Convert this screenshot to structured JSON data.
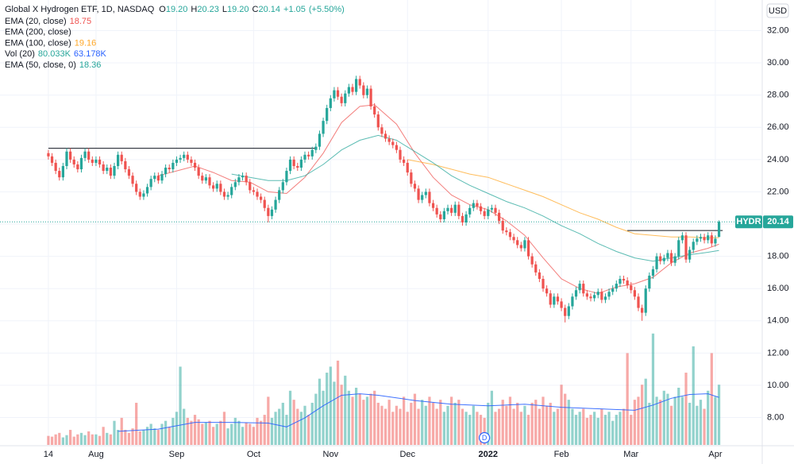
{
  "chart_data": {
    "type": "candlestick",
    "title": "Global X Hydrogen ETF, 1D, NASDAQ",
    "ohlc_keys": [
      "O",
      "H",
      "L",
      "C"
    ],
    "ohlc_labels": [
      "19.20",
      "20.23",
      "19.20",
      "20.14"
    ],
    "change_labels": [
      "+1.05",
      "(+5.50%)"
    ],
    "currency": "USD",
    "symbol": "HYDR",
    "up_color": "#26a69a",
    "down_color": "#ef5350",
    "xlim": [
      -13.2,
      194.8
    ],
    "ylim": [
      6.3,
      33.9
    ],
    "volume_ylim": [
      0,
      190
    ],
    "grid": true,
    "yticks": [
      {
        "value": 8,
        "label": "8.00"
      },
      {
        "value": 10,
        "label": "10.00"
      },
      {
        "value": 12,
        "label": "12.00"
      },
      {
        "value": 14,
        "label": "14.00"
      },
      {
        "value": 16,
        "label": "16.00"
      },
      {
        "value": 18,
        "label": "18.00"
      },
      {
        "value": 20,
        "label": "20.00"
      },
      {
        "value": 22,
        "label": "22.00"
      },
      {
        "value": 24,
        "label": "24.00"
      },
      {
        "value": 26,
        "label": "26.00"
      },
      {
        "value": 28,
        "label": "28.00"
      },
      {
        "value": 30,
        "label": "30.00"
      },
      {
        "value": 32,
        "label": "32.00"
      }
    ],
    "xticks": [
      {
        "value": 0,
        "label": "14"
      },
      {
        "value": 13,
        "label": "Aug"
      },
      {
        "value": 35,
        "label": "Sep"
      },
      {
        "value": 56,
        "label": "Oct"
      },
      {
        "value": 77,
        "label": "Nov"
      },
      {
        "value": 98,
        "label": "Dec"
      },
      {
        "value": 120,
        "label": "2022"
      },
      {
        "value": 140,
        "label": "Feb"
      },
      {
        "value": 159,
        "label": "Mar"
      },
      {
        "value": 182,
        "label": "Apr"
      }
    ],
    "open": [
      24.4,
      24.2,
      23.8,
      23.3,
      22.9,
      23.6,
      24.5,
      24.0,
      23.7,
      23.4,
      24.1,
      24.5,
      24.0,
      23.8,
      24.0,
      23.7,
      23.3,
      23.5,
      23.0,
      23.6,
      24.3,
      23.9,
      23.4,
      23.0,
      22.5,
      22.0,
      21.7,
      21.9,
      22.3,
      22.8,
      23.0,
      22.7,
      23.1,
      23.5,
      23.4,
      23.8,
      24.0,
      24.1,
      24.3,
      24.0,
      23.8,
      23.5,
      23.0,
      22.7,
      22.9,
      22.4,
      22.2,
      22.5,
      22.0,
      21.7,
      21.8,
      22.3,
      22.6,
      22.9,
      23.0,
      22.6,
      22.1,
      22.0,
      21.7,
      21.5,
      21.0,
      20.5,
      20.9,
      21.5,
      22.1,
      22.6,
      23.3,
      24.0,
      23.6,
      23.5,
      24.0,
      24.3,
      24.2,
      24.6,
      24.8,
      25.6,
      26.4,
      27.2,
      27.8,
      28.3,
      27.9,
      27.5,
      28.1,
      28.5,
      28.2,
      29.0,
      28.6,
      28.0,
      28.4,
      27.3,
      26.8,
      26.0,
      25.6,
      25.3,
      25.1,
      24.9,
      24.6,
      24.0,
      23.8,
      23.2,
      22.5,
      22.2,
      21.5,
      21.8,
      22.0,
      21.3,
      21.0,
      20.6,
      20.3,
      20.8,
      21.0,
      20.7,
      21.2,
      20.5,
      20.1,
      20.6,
      21.0,
      21.3,
      21.1,
      20.8,
      20.5,
      20.9,
      21.0,
      20.7,
      20.2,
      19.6,
      19.5,
      19.2,
      19.0,
      18.7,
      18.5,
      19.0,
      18.0,
      17.5,
      17.0,
      16.6,
      16.0,
      15.7,
      15.0,
      15.5,
      15.2,
      14.8,
      14.3,
      14.9,
      15.5,
      15.9,
      16.3,
      15.7,
      15.5,
      15.4,
      15.6,
      15.8,
      15.3,
      15.5,
      15.8,
      16.0,
      16.3,
      16.6,
      16.5,
      16.2,
      15.9,
      15.5,
      14.8,
      14.5,
      16.0,
      16.8,
      17.2,
      18.0,
      17.7,
      17.9,
      18.2,
      17.6,
      18.0,
      19.0,
      19.3,
      17.8,
      18.4,
      18.9,
      19.1,
      19.2,
      19.0,
      19.3,
      18.8,
      19.2
    ],
    "high": [
      24.6,
      24.4,
      24.0,
      23.5,
      23.8,
      24.7,
      24.7,
      24.2,
      23.9,
      24.3,
      24.7,
      24.7,
      24.2,
      24.2,
      24.2,
      23.9,
      23.7,
      23.7,
      23.8,
      24.5,
      24.5,
      24.1,
      23.6,
      23.2,
      22.7,
      22.2,
      22.1,
      22.5,
      23.0,
      23.2,
      23.2,
      23.3,
      23.7,
      23.7,
      24.0,
      24.2,
      24.3,
      24.5,
      24.5,
      24.2,
      24.0,
      23.7,
      23.2,
      23.1,
      23.1,
      22.6,
      22.7,
      22.7,
      22.2,
      22.0,
      22.5,
      22.8,
      23.1,
      23.2,
      23.2,
      22.8,
      22.3,
      22.2,
      21.9,
      21.7,
      21.2,
      21.1,
      21.7,
      22.3,
      22.8,
      23.5,
      24.2,
      24.2,
      23.8,
      24.2,
      24.5,
      24.5,
      24.8,
      25.0,
      25.8,
      26.6,
      27.4,
      28.0,
      28.5,
      28.5,
      28.1,
      28.3,
      28.7,
      28.7,
      29.2,
      29.2,
      28.8,
      28.6,
      28.6,
      27.5,
      27.0,
      26.2,
      25.8,
      25.5,
      25.3,
      25.1,
      24.8,
      24.2,
      24.0,
      23.4,
      22.7,
      22.4,
      22.0,
      22.2,
      22.2,
      21.5,
      21.2,
      20.8,
      21.0,
      21.2,
      21.2,
      21.4,
      21.4,
      20.7,
      20.8,
      21.2,
      21.5,
      21.5,
      21.3,
      21.0,
      21.1,
      21.2,
      21.2,
      20.9,
      20.4,
      19.8,
      19.7,
      19.4,
      19.2,
      18.9,
      19.2,
      19.2,
      18.2,
      17.7,
      17.2,
      16.8,
      16.2,
      15.9,
      15.7,
      15.7,
      15.4,
      15.0,
      15.1,
      15.7,
      16.1,
      16.5,
      16.5,
      15.9,
      15.7,
      15.8,
      16.0,
      16.0,
      15.7,
      16.0,
      16.2,
      16.5,
      16.8,
      16.8,
      16.7,
      16.4,
      16.1,
      15.7,
      15.0,
      16.2,
      17.0,
      17.4,
      18.2,
      18.2,
      18.1,
      18.4,
      18.4,
      18.2,
      19.2,
      19.5,
      19.5,
      18.6,
      19.1,
      19.3,
      19.4,
      19.4,
      19.5,
      19.5,
      19.3,
      20.23
    ],
    "low": [
      24.0,
      23.6,
      23.1,
      22.7,
      22.7,
      23.4,
      23.8,
      23.5,
      23.2,
      23.2,
      23.9,
      23.8,
      23.6,
      23.6,
      23.5,
      23.1,
      23.1,
      22.8,
      22.8,
      23.4,
      23.7,
      23.2,
      22.8,
      22.3,
      21.8,
      21.5,
      21.5,
      21.7,
      22.1,
      22.6,
      22.5,
      22.5,
      22.9,
      23.2,
      23.2,
      23.6,
      23.8,
      23.9,
      23.8,
      23.6,
      23.3,
      22.8,
      22.5,
      22.5,
      22.2,
      22.0,
      22.0,
      21.8,
      21.5,
      21.5,
      21.6,
      22.1,
      22.4,
      22.7,
      22.4,
      21.9,
      21.8,
      21.5,
      21.3,
      20.8,
      20.1,
      20.3,
      20.7,
      21.3,
      21.9,
      22.4,
      23.1,
      23.4,
      23.3,
      23.3,
      23.8,
      24.0,
      24.0,
      24.4,
      24.6,
      25.4,
      26.2,
      27.0,
      27.6,
      27.7,
      27.3,
      27.3,
      27.9,
      28.0,
      28.0,
      28.4,
      27.8,
      27.8,
      27.1,
      26.6,
      25.8,
      25.4,
      25.1,
      24.9,
      24.7,
      24.4,
      23.8,
      23.6,
      23.0,
      22.3,
      22.0,
      21.3,
      21.3,
      21.6,
      21.1,
      20.8,
      20.4,
      20.1,
      20.1,
      20.6,
      20.5,
      20.5,
      20.3,
      19.9,
      19.9,
      20.4,
      20.8,
      20.9,
      20.6,
      20.3,
      20.3,
      20.7,
      20.5,
      20.0,
      19.4,
      19.3,
      19.0,
      18.8,
      18.5,
      18.3,
      18.3,
      17.8,
      17.3,
      16.8,
      16.4,
      15.8,
      15.5,
      14.8,
      14.8,
      15.0,
      14.6,
      13.9,
      14.1,
      14.7,
      15.3,
      15.7,
      15.5,
      15.3,
      15.2,
      15.2,
      15.4,
      15.1,
      15.1,
      15.3,
      15.6,
      15.8,
      16.1,
      16.3,
      16.0,
      15.7,
      15.3,
      14.6,
      14.0,
      14.3,
      15.8,
      16.6,
      17.0,
      17.5,
      17.5,
      17.7,
      17.4,
      17.4,
      17.8,
      18.8,
      17.6,
      17.6,
      18.2,
      18.7,
      18.9,
      18.8,
      18.8,
      18.6,
      18.6,
      19.2
    ],
    "close": [
      24.2,
      23.8,
      23.3,
      22.9,
      23.6,
      24.5,
      24.0,
      23.7,
      23.4,
      24.1,
      24.5,
      24.0,
      23.8,
      24.0,
      23.7,
      23.3,
      23.5,
      23.0,
      23.6,
      24.3,
      23.9,
      23.4,
      23.0,
      22.5,
      22.0,
      21.7,
      21.9,
      22.3,
      22.8,
      23.0,
      22.7,
      23.1,
      23.5,
      23.4,
      23.8,
      24.0,
      24.1,
      24.3,
      24.0,
      23.8,
      23.5,
      23.0,
      22.7,
      22.9,
      22.4,
      22.2,
      22.5,
      22.0,
      21.7,
      21.8,
      22.3,
      22.6,
      22.9,
      23.0,
      22.6,
      22.1,
      22.0,
      21.7,
      21.5,
      21.0,
      20.5,
      20.9,
      21.5,
      22.1,
      22.6,
      23.3,
      24.0,
      23.6,
      23.5,
      24.0,
      24.3,
      24.2,
      24.6,
      24.8,
      25.6,
      26.4,
      27.2,
      27.8,
      28.3,
      27.9,
      27.5,
      28.1,
      28.5,
      28.2,
      29.0,
      28.6,
      28.0,
      28.4,
      27.3,
      26.8,
      26.0,
      25.6,
      25.3,
      25.1,
      24.9,
      24.6,
      24.0,
      23.8,
      23.2,
      22.5,
      22.2,
      21.5,
      21.8,
      22.0,
      21.3,
      21.0,
      20.6,
      20.3,
      20.8,
      21.0,
      20.7,
      21.2,
      20.5,
      20.1,
      20.6,
      21.0,
      21.3,
      21.1,
      20.8,
      20.5,
      20.9,
      21.0,
      20.7,
      20.2,
      19.6,
      19.5,
      19.2,
      19.0,
      18.7,
      18.5,
      19.0,
      18.0,
      17.5,
      17.0,
      16.6,
      16.0,
      15.7,
      15.0,
      15.5,
      15.2,
      14.8,
      14.3,
      14.9,
      15.5,
      15.9,
      16.3,
      15.7,
      15.5,
      15.4,
      15.6,
      15.8,
      15.3,
      15.5,
      15.8,
      16.0,
      16.3,
      16.6,
      16.5,
      16.2,
      15.9,
      15.5,
      14.8,
      14.5,
      16.0,
      16.8,
      17.2,
      18.0,
      17.7,
      17.9,
      18.2,
      17.6,
      18.0,
      19.0,
      19.3,
      17.8,
      18.4,
      18.9,
      19.1,
      19.2,
      19.0,
      19.3,
      18.8,
      19.09,
      20.14
    ],
    "volume": [
      12,
      11,
      14,
      16,
      10,
      13,
      20,
      11,
      14,
      16,
      13,
      18,
      14,
      14,
      12,
      24,
      16,
      14,
      32,
      20,
      36,
      20,
      16,
      22,
      56,
      18,
      20,
      24,
      28,
      22,
      20,
      28,
      32,
      24,
      36,
      44,
      104,
      48,
      36,
      32,
      40,
      34,
      28,
      30,
      32,
      24,
      28,
      32,
      44,
      22,
      28,
      36,
      32,
      24,
      30,
      28,
      24,
      36,
      32,
      40,
      64,
      36,
      44,
      48,
      56,
      40,
      72,
      60,
      48,
      44,
      52,
      40,
      56,
      68,
      88,
      72,
      96,
      104,
      84,
      112,
      80,
      92,
      72,
      64,
      76,
      68,
      60,
      64,
      68,
      72,
      56,
      52,
      48,
      60,
      44,
      52,
      48,
      64,
      44,
      56,
      68,
      48,
      60,
      52,
      64,
      56,
      48,
      60,
      44,
      52,
      64,
      56,
      60,
      48,
      44,
      40,
      52,
      44,
      40,
      36,
      56,
      72,
      44,
      48,
      60,
      52,
      64,
      48,
      56,
      44,
      52,
      40,
      56,
      60,
      48,
      64,
      52,
      56,
      44,
      48,
      80,
      68,
      60,
      48,
      40,
      44,
      48,
      36,
      40,
      44,
      36,
      48,
      40,
      44,
      32,
      40,
      44,
      48,
      122,
      40,
      60,
      64,
      80,
      88,
      56,
      148,
      64,
      60,
      72,
      68,
      52,
      64,
      76,
      64,
      96,
      56,
      131,
      52,
      60,
      48,
      72,
      122,
      64,
      80.033
    ],
    "legend": [
      {
        "name": "EMA (20, close)",
        "color": "#ef5350",
        "x": [
          30,
          35,
          40,
          45,
          50,
          55,
          60,
          65,
          70,
          75,
          80,
          85,
          89,
          95,
          100,
          105,
          110,
          115,
          120,
          125,
          130,
          135,
          140,
          145,
          150,
          155,
          160,
          165,
          170,
          175,
          180,
          183
        ],
        "values": [
          23.0,
          23.3,
          23.6,
          23.2,
          22.7,
          22.6,
          22.0,
          21.9,
          22.9,
          24.4,
          26.3,
          27.3,
          27.4,
          26.2,
          24.4,
          22.9,
          21.8,
          21.2,
          20.9,
          20.2,
          19.3,
          17.9,
          16.6,
          16.0,
          15.7,
          16.1,
          16.3,
          16.7,
          17.6,
          18.2,
          18.5,
          18.75
        ]
      },
      {
        "name": "EMA (200, close)"
      },
      {
        "name": "EMA (100, close)",
        "color": "#ffa726",
        "x": [
          98,
          105,
          110,
          115,
          120,
          125,
          130,
          135,
          140,
          145,
          150,
          155,
          160,
          165,
          170,
          175,
          180,
          183
        ],
        "values": [
          24.0,
          23.7,
          23.4,
          23.1,
          22.9,
          22.5,
          22.1,
          21.7,
          21.2,
          20.7,
          20.3,
          19.8,
          19.4,
          19.3,
          19.2,
          19.2,
          19.15,
          19.16
        ]
      },
      {
        "name": "Vol (20)",
        "last_label": "80.033K",
        "last_color": "#26a69a",
        "ma_label": "63.178K",
        "color": "#2962ff",
        "x": [
          19,
          30,
          40,
          50,
          60,
          65,
          70,
          75,
          80,
          85,
          90,
          100,
          110,
          120,
          130,
          140,
          150,
          160,
          165,
          170,
          175,
          180,
          183
        ],
        "values": [
          18,
          21,
          30,
          30,
          29,
          24,
          36,
          52,
          66,
          68,
          66,
          59,
          54,
          52,
          54,
          50,
          48,
          46,
          53,
          62,
          67,
          68,
          63.178
        ]
      },
      {
        "name": "EMA (50, close, 0)",
        "color": "#26a69a",
        "x": [
          50,
          55,
          60,
          65,
          70,
          75,
          80,
          85,
          90,
          95,
          100,
          105,
          110,
          115,
          120,
          125,
          130,
          135,
          140,
          145,
          150,
          155,
          160,
          165,
          170,
          175,
          180,
          183
        ],
        "values": [
          23.1,
          22.9,
          22.7,
          22.7,
          23.0,
          23.7,
          24.6,
          25.2,
          25.5,
          25.2,
          24.5,
          23.8,
          23.0,
          22.4,
          21.9,
          21.4,
          21.0,
          20.5,
          19.9,
          19.4,
          18.8,
          18.3,
          17.9,
          17.7,
          17.9,
          18.1,
          18.25,
          18.36
        ]
      }
    ],
    "levels": [
      {
        "value": 24.7,
        "x": [
          0,
          73
        ]
      },
      {
        "value": 19.6,
        "x": [
          158,
          184
        ]
      }
    ],
    "dividend": {
      "label": "D",
      "x": 119
    }
  }
}
